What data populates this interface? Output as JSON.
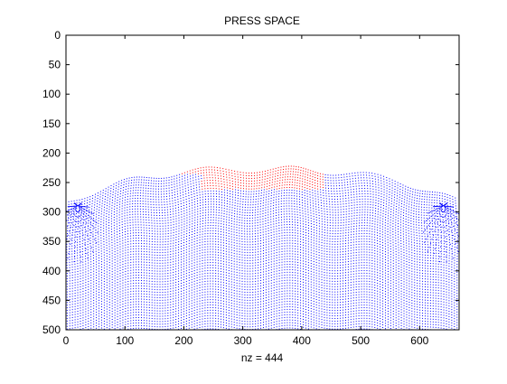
{
  "chart_data": {
    "type": "scatter",
    "title": "PRESS SPACE",
    "xlabel": "nz = 444",
    "ylabel": "",
    "xlim": [
      0,
      667
    ],
    "ylim": [
      500,
      0
    ],
    "y_reversed": true,
    "grid": false,
    "xticks": [
      "0",
      "100",
      "200",
      "300",
      "400",
      "500",
      "600"
    ],
    "yticks": [
      "0",
      "50",
      "100",
      "150",
      "200",
      "250",
      "300",
      "350",
      "400",
      "450",
      "500"
    ],
    "series": [
      {
        "color": "#0000ff",
        "marker": "dot"
      },
      {
        "color": "#ff0000",
        "marker": "dot"
      }
    ]
  },
  "colors": {
    "axes": "#000000",
    "background": "#ffffff"
  }
}
